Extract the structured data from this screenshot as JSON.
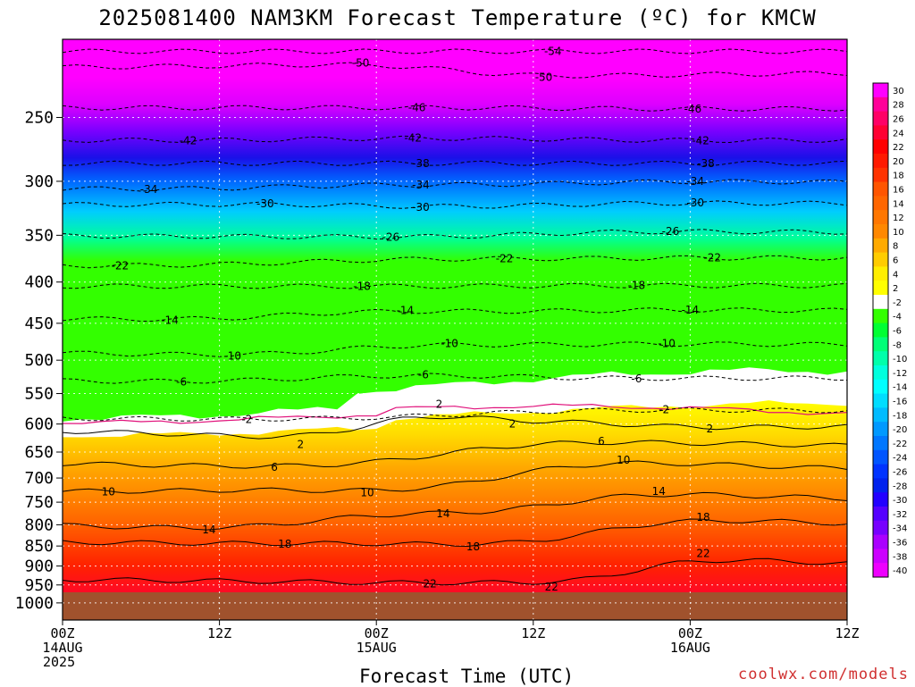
{
  "title": "2025081400 NAM3KM Forecast Temperature (ºC) for KMCW",
  "xlabel": "Forecast Time (UTC)",
  "credit": "coolwx.com/models",
  "chart_data": {
    "type": "heatmap",
    "title": "2025081400 NAM3KM Forecast Temperature (ºC) for KMCW",
    "xlabel": "Forecast Time (UTC)",
    "ylabel": "",
    "x_ticks": [
      {
        "hour": 0,
        "lines": [
          "00Z",
          "14AUG",
          "2025"
        ]
      },
      {
        "hour": 12,
        "lines": [
          "12Z"
        ]
      },
      {
        "hour": 24,
        "lines": [
          "00Z",
          "15AUG"
        ]
      },
      {
        "hour": 36,
        "lines": [
          "12Z"
        ]
      },
      {
        "hour": 48,
        "lines": [
          "00Z",
          "16AUG"
        ]
      },
      {
        "hour": 60,
        "lines": [
          "12Z"
        ]
      }
    ],
    "xlim": [
      0,
      60
    ],
    "y_ticks": [
      250,
      300,
      350,
      400,
      450,
      500,
      550,
      600,
      650,
      700,
      750,
      800,
      850,
      900,
      950,
      1000
    ],
    "ylim_hPa": [
      200,
      1050
    ],
    "y_scale": "log",
    "grid": true,
    "surface_pressure_hPa": 970,
    "colorbar": {
      "levels": [
        30,
        28,
        26,
        24,
        22,
        20,
        18,
        16,
        14,
        12,
        10,
        8,
        6,
        4,
        2,
        -2,
        -4,
        -6,
        -8,
        -10,
        -12,
        -14,
        -16,
        -18,
        -20,
        -22,
        -24,
        -26,
        -28,
        -30,
        -32,
        -34,
        -36,
        -38,
        -40
      ],
      "colors": [
        "#ff00ff",
        "#ff0099",
        "#ff0066",
        "#ff0033",
        "#ff0000",
        "#ff1a00",
        "#ff3300",
        "#ff5500",
        "#ff6600",
        "#ff7700",
        "#ff8800",
        "#ffaa00",
        "#ffcc00",
        "#ffee00",
        "#ffff00",
        "#ffffff",
        "#33ff00",
        "#00ff33",
        "#00ff77",
        "#00ffaa",
        "#00ffdd",
        "#00ffff",
        "#00ddff",
        "#00bbff",
        "#0099ff",
        "#0077ff",
        "#0055ff",
        "#0033ff",
        "#0022ee",
        "#2200ff",
        "#5500ff",
        "#7700ff",
        "#aa00ff",
        "#cc00ff",
        "#ee00ff"
      ]
    },
    "isotherm_labels": [
      {
        "t": -54,
        "hour": 37.5,
        "p": 207
      },
      {
        "t": -50,
        "hour": 22.8,
        "p": 214
      },
      {
        "t": -50,
        "hour": 36.8,
        "p": 223
      },
      {
        "t": -46,
        "hour": 27.1,
        "p": 243
      },
      {
        "t": -46,
        "hour": 48.2,
        "p": 244
      },
      {
        "t": -42,
        "hour": 9.6,
        "p": 267
      },
      {
        "t": -42,
        "hour": 26.8,
        "p": 265
      },
      {
        "t": -42,
        "hour": 48.8,
        "p": 267
      },
      {
        "t": -38,
        "hour": 27.4,
        "p": 285
      },
      {
        "t": -38,
        "hour": 49.2,
        "p": 285
      },
      {
        "t": -34,
        "hour": 6.6,
        "p": 307
      },
      {
        "t": -34,
        "hour": 27.4,
        "p": 303
      },
      {
        "t": -34,
        "hour": 48.4,
        "p": 300
      },
      {
        "t": -30,
        "hour": 15.5,
        "p": 320
      },
      {
        "t": -30,
        "hour": 27.4,
        "p": 323
      },
      {
        "t": -30,
        "hour": 48.4,
        "p": 319
      },
      {
        "t": -26,
        "hour": 25.1,
        "p": 352
      },
      {
        "t": -26,
        "hour": 46.5,
        "p": 346
      },
      {
        "t": -22,
        "hour": 4.4,
        "p": 382
      },
      {
        "t": -22,
        "hour": 33.8,
        "p": 374
      },
      {
        "t": -22,
        "hour": 49.7,
        "p": 373
      },
      {
        "t": -18,
        "hour": 22.9,
        "p": 405
      },
      {
        "t": -18,
        "hour": 43.9,
        "p": 404
      },
      {
        "t": -14,
        "hour": 8.2,
        "p": 446
      },
      {
        "t": -14,
        "hour": 26.2,
        "p": 434
      },
      {
        "t": -14,
        "hour": 48.0,
        "p": 433
      },
      {
        "t": -10,
        "hour": 13.0,
        "p": 494
      },
      {
        "t": -10,
        "hour": 29.6,
        "p": 477
      },
      {
        "t": -10,
        "hour": 46.2,
        "p": 477
      },
      {
        "t": -6,
        "hour": 9.1,
        "p": 532
      },
      {
        "t": -6,
        "hour": 27.6,
        "p": 521
      },
      {
        "t": -6,
        "hour": 43.9,
        "p": 527
      },
      {
        "t": -2,
        "hour": 14.1,
        "p": 592
      },
      {
        "t": -2,
        "hour": 46.0,
        "p": 576
      },
      {
        "t": 2,
        "hour": 28.8,
        "p": 567
      },
      {
        "t": 2,
        "hour": 34.4,
        "p": 600
      },
      {
        "t": 2,
        "hour": 49.5,
        "p": 608
      },
      {
        "t": 2,
        "hour": 18.2,
        "p": 636
      },
      {
        "t": 6,
        "hour": 16.2,
        "p": 679
      },
      {
        "t": 6,
        "hour": 41.2,
        "p": 630
      },
      {
        "t": 10,
        "hour": 3.5,
        "p": 728
      },
      {
        "t": 10,
        "hour": 23.3,
        "p": 730
      },
      {
        "t": 10,
        "hour": 42.9,
        "p": 665
      },
      {
        "t": 14,
        "hour": 11.2,
        "p": 812
      },
      {
        "t": 14,
        "hour": 29.1,
        "p": 775
      },
      {
        "t": 14,
        "hour": 45.6,
        "p": 727
      },
      {
        "t": 18,
        "hour": 17.0,
        "p": 845
      },
      {
        "t": 18,
        "hour": 31.4,
        "p": 852
      },
      {
        "t": 18,
        "hour": 49.0,
        "p": 783
      },
      {
        "t": 22,
        "hour": 28.1,
        "p": 947
      },
      {
        "t": 22,
        "hour": 37.4,
        "p": 955
      },
      {
        "t": 22,
        "hour": 49.0,
        "p": 868
      }
    ]
  }
}
